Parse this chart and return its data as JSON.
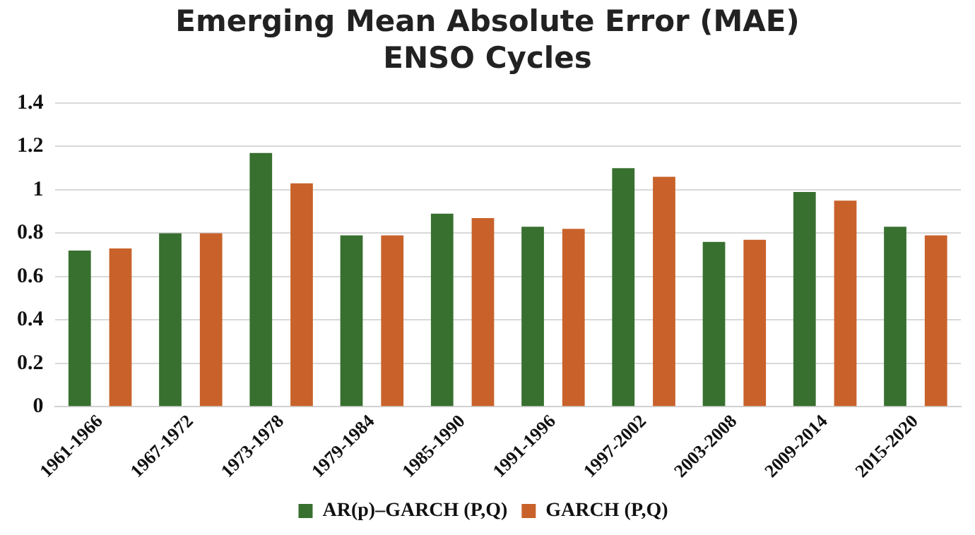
{
  "chart_data": {
    "type": "bar",
    "title": "Emerging Mean Absolute Error (MAE) ENSO Cycles",
    "categories": [
      "1961-1966",
      "1967-1972",
      "1973-1978",
      "1979-1984",
      "1985-1990",
      "1991-1996",
      "1997-2002",
      "2003-2008",
      "2009-2014",
      "2015-2020"
    ],
    "series": [
      {
        "name": "AR(p)–GARCH (P,Q)",
        "color": "#38702f",
        "values": [
          0.72,
          0.8,
          1.17,
          0.79,
          0.89,
          0.83,
          1.1,
          0.76,
          0.99,
          0.83
        ]
      },
      {
        "name": "GARCH (P,Q)",
        "color": "#c8622a",
        "values": [
          0.73,
          0.8,
          1.03,
          0.79,
          0.87,
          0.82,
          1.06,
          0.77,
          0.95,
          0.79
        ]
      }
    ],
    "ylim": [
      0,
      1.4
    ],
    "yticks": [
      0,
      0.2,
      0.4,
      0.6,
      0.8,
      1,
      1.2,
      1.4
    ],
    "grid": "y",
    "legend": "bottom"
  }
}
